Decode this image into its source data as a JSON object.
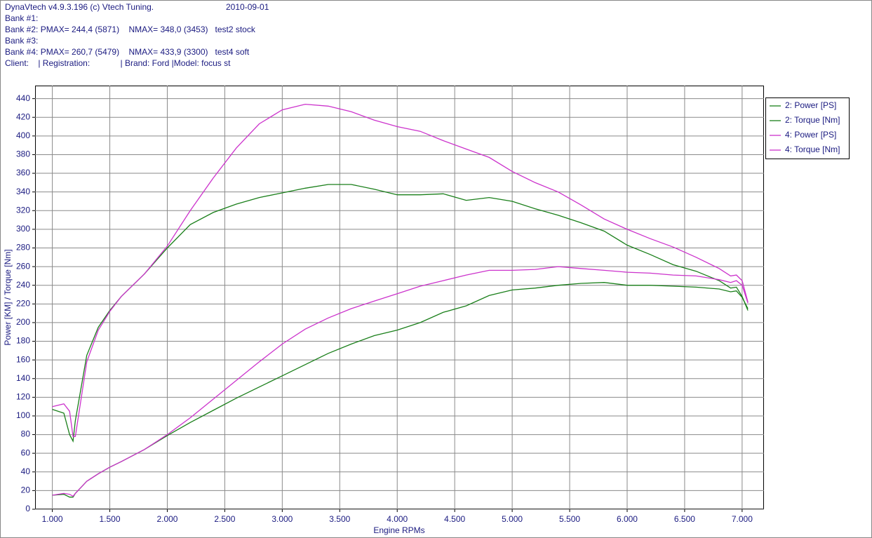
{
  "header": {
    "title": "DynaVtech v4.9.3.196 (c) Vtech Tuning.",
    "date": "2010-09-01",
    "lines": [
      "Bank #1:",
      "Bank #2: PMAX= 244,4 (5871)    NMAX= 348,0 (3453)   test2 stock",
      "Bank #3:",
      "Bank #4: PMAX= 260,7 (5479)    NMAX= 433,9 (3300)   test4 soft",
      "Client:    | Registration:             | Brand: Ford |Model: focus st"
    ]
  },
  "chart_data": {
    "type": "line",
    "xlabel": "Engine RPMs",
    "ylabel": "Power [KM] / Torque [Nm]",
    "grid": true,
    "legend": "right",
    "xlim": [
      850,
      7190
    ],
    "ylim": [
      0,
      454
    ],
    "xticks": [
      {
        "value": 1000,
        "label": "1.000"
      },
      {
        "value": 1500,
        "label": "1.500"
      },
      {
        "value": 2000,
        "label": "2.000"
      },
      {
        "value": 2500,
        "label": "2.500"
      },
      {
        "value": 3000,
        "label": "3.000"
      },
      {
        "value": 3500,
        "label": "3.500"
      },
      {
        "value": 4000,
        "label": "4.000"
      },
      {
        "value": 4500,
        "label": "4.500"
      },
      {
        "value": 5000,
        "label": "5.000"
      },
      {
        "value": 5500,
        "label": "5.500"
      },
      {
        "value": 6000,
        "label": "6.000"
      },
      {
        "value": 6500,
        "label": "6.500"
      },
      {
        "value": 7000,
        "label": "7.000"
      }
    ],
    "yticks": [
      0,
      20,
      40,
      60,
      80,
      100,
      120,
      140,
      160,
      180,
      200,
      220,
      240,
      260,
      280,
      300,
      320,
      340,
      360,
      380,
      400,
      420,
      440
    ],
    "x": [
      1000,
      1100,
      1150,
      1180,
      1200,
      1300,
      1400,
      1500,
      1600,
      1800,
      2000,
      2200,
      2400,
      2600,
      2800,
      3000,
      3200,
      3400,
      3600,
      3800,
      4000,
      4200,
      4400,
      4600,
      4800,
      5000,
      5200,
      5400,
      5600,
      5800,
      6000,
      6200,
      6400,
      6600,
      6800,
      6900,
      6950,
      7000,
      7050
    ],
    "series": [
      {
        "name": "2: Power [PS]",
        "color": "#1a7f1a",
        "values": [
          15,
          16,
          13,
          13,
          17,
          30,
          38,
          45,
          51,
          64,
          79,
          93,
          106,
          119,
          131,
          143,
          155,
          167,
          177,
          186,
          192,
          200,
          211,
          218,
          229,
          235,
          237,
          240,
          242,
          243,
          240,
          240,
          239,
          238,
          236,
          233,
          234,
          227,
          215
        ]
      },
      {
        "name": "2: Torque [Nm]",
        "color": "#1a7f1a",
        "values": [
          107,
          103,
          80,
          73,
          95,
          165,
          195,
          213,
          228,
          252,
          280,
          305,
          318,
          327,
          334,
          339,
          344,
          348,
          348,
          343,
          337,
          337,
          338,
          331,
          334,
          330,
          322,
          315,
          307,
          298,
          283,
          273,
          262,
          255,
          245,
          237,
          238,
          228,
          213
        ]
      },
      {
        "name": "4: Power [PS]",
        "color": "#cc33cc",
        "values": [
          15,
          17,
          16,
          14,
          17,
          30,
          38,
          45,
          51,
          64,
          80,
          98,
          118,
          138,
          158,
          177,
          193,
          205,
          215,
          223,
          231,
          239,
          245,
          251,
          256,
          256,
          257,
          260,
          258,
          256,
          254,
          253,
          251,
          250,
          246,
          243,
          245,
          240,
          221
        ]
      },
      {
        "name": "4: Torque [Nm]",
        "color": "#cc33cc",
        "values": [
          110,
          113,
          105,
          78,
          78,
          158,
          192,
          212,
          228,
          252,
          282,
          320,
          355,
          387,
          413,
          428,
          434,
          432,
          426,
          417,
          410,
          405,
          395,
          386,
          377,
          362,
          350,
          340,
          326,
          311,
          300,
          290,
          281,
          270,
          258,
          250,
          251,
          245,
          222
        ]
      }
    ]
  }
}
